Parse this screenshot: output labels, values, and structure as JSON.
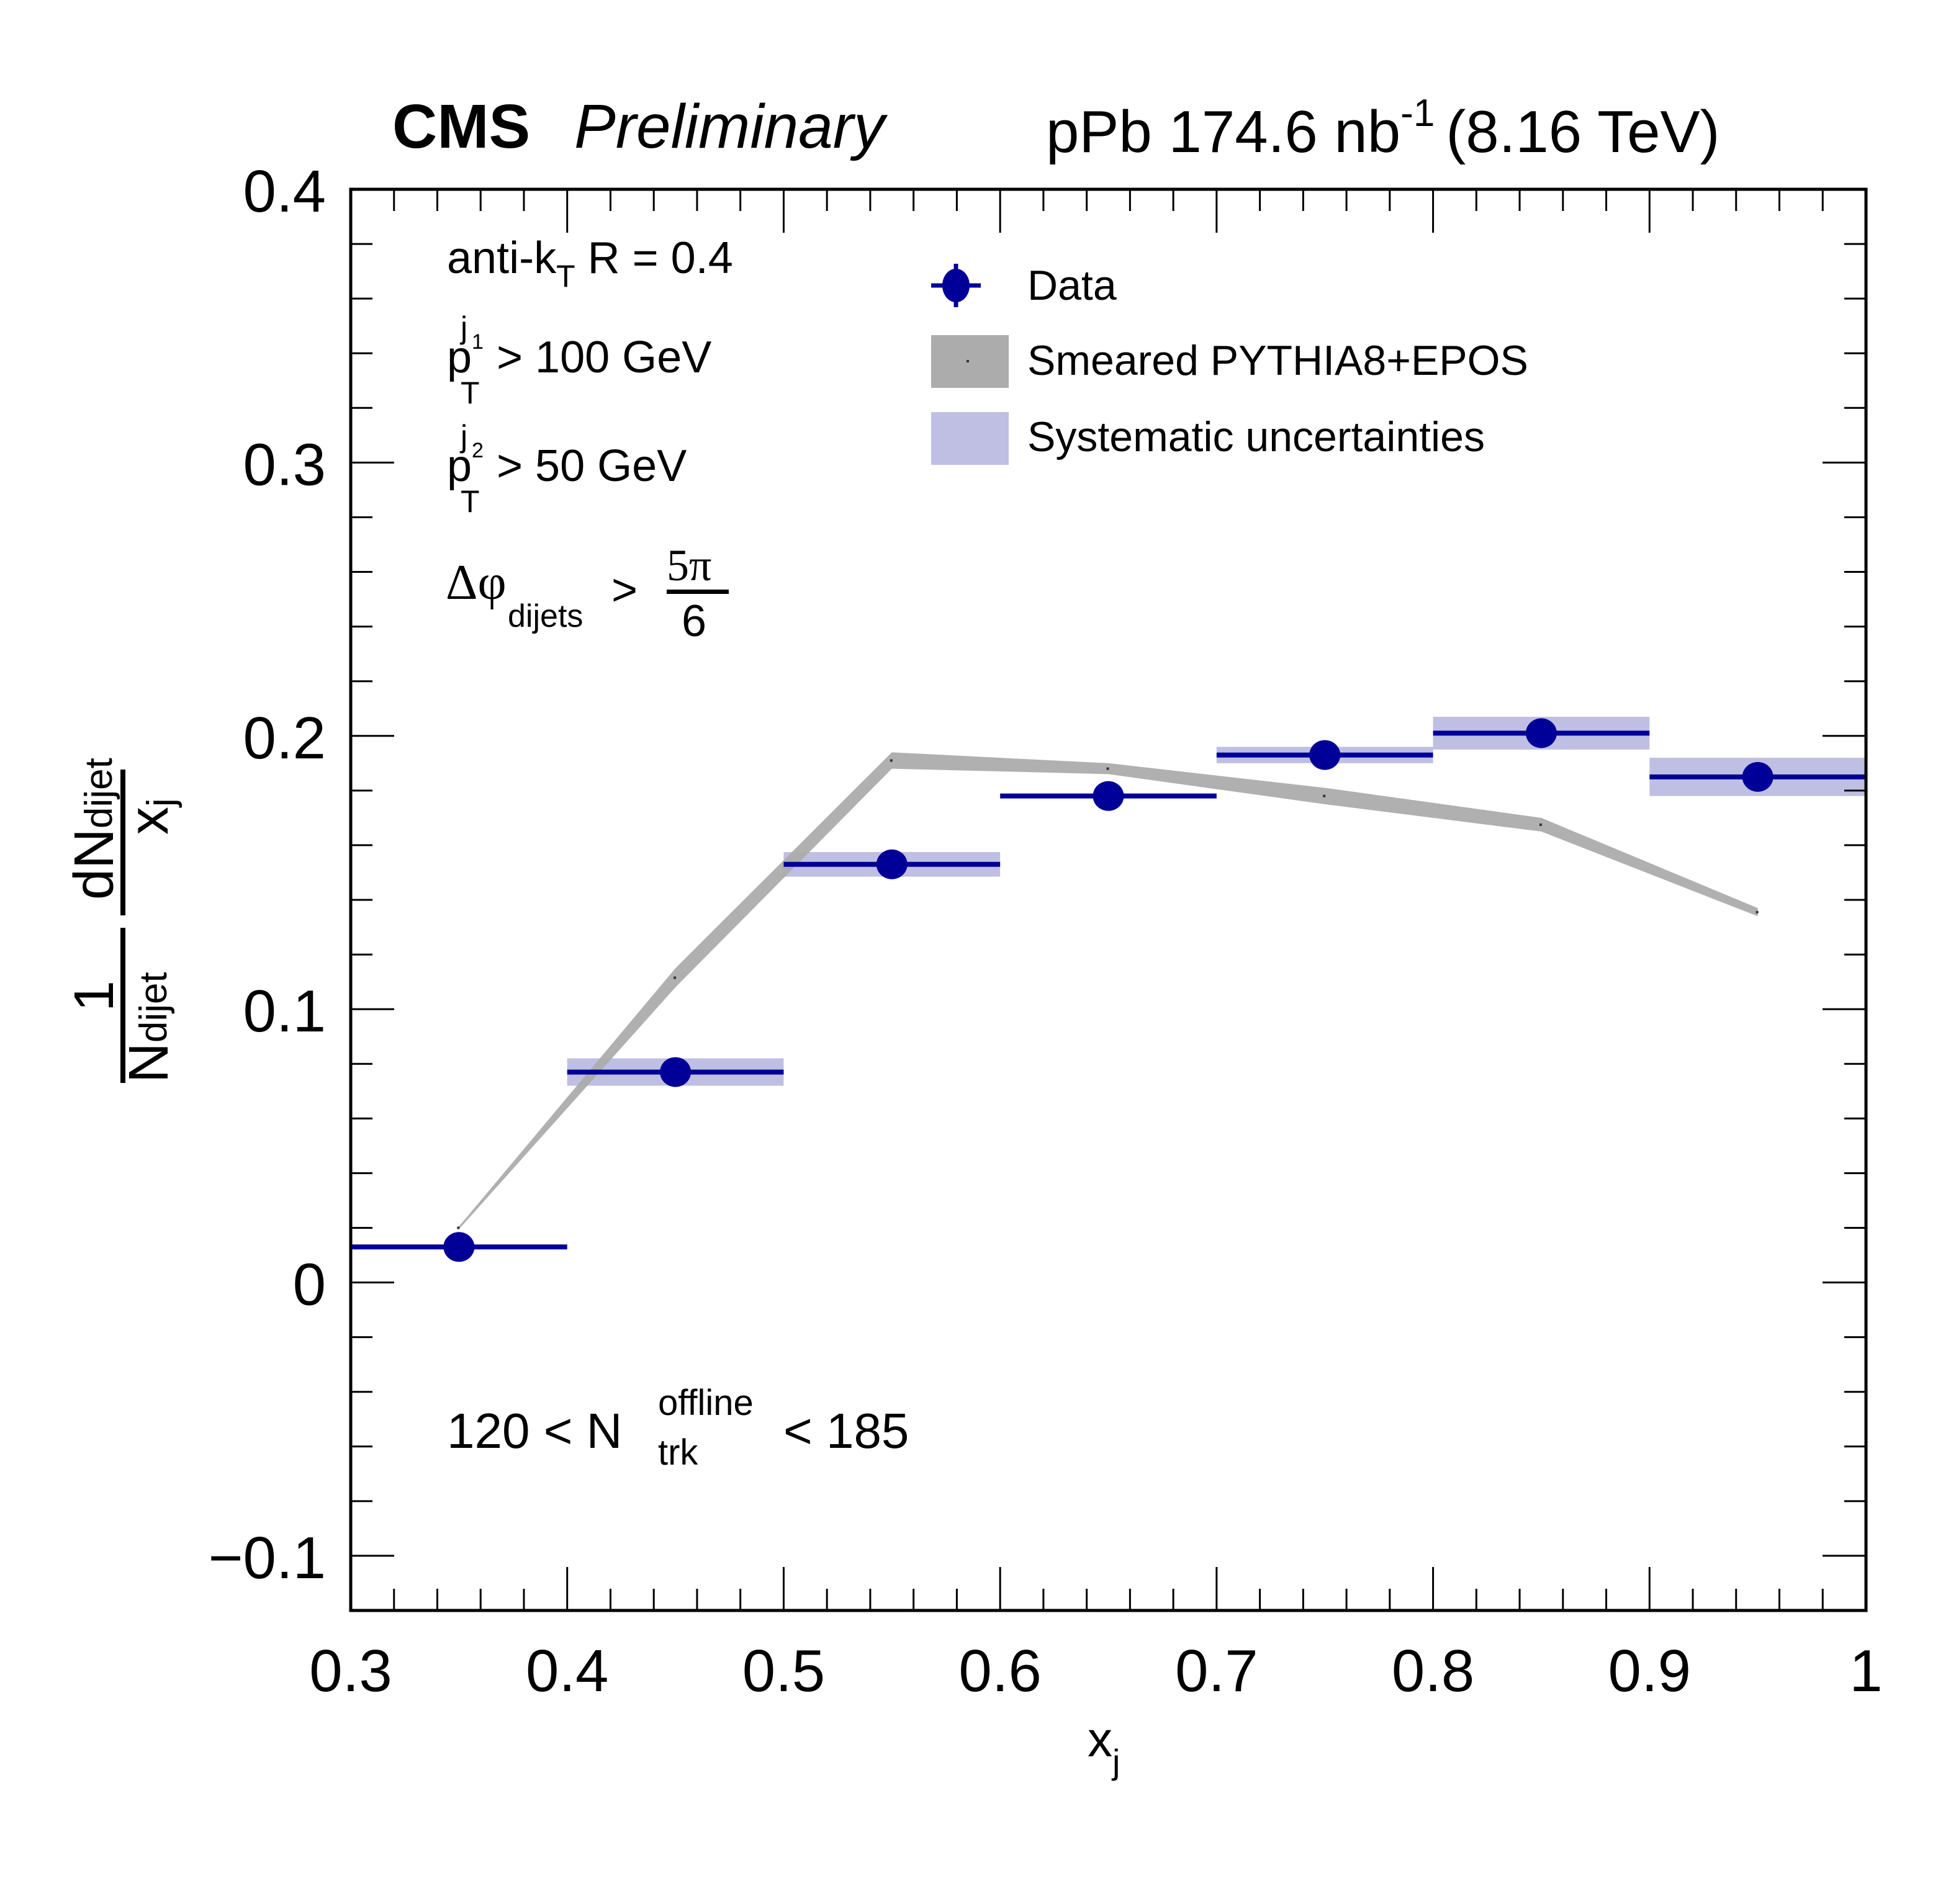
{
  "header": {
    "experiment": "CMS",
    "status": "Preliminary",
    "lumi_prefix": "pPb 174.6 nb",
    "lumi_exponent": "-1",
    "energy": "(8.16 TeV)"
  },
  "annotations": {
    "algo_prefix": "anti-k",
    "algo_sub": "T",
    "algo_suffix": " R = 0.4",
    "pt1_p": "p",
    "pt1_sub": "T",
    "pt1_sup": "j",
    "pt1_sup_sub": "1",
    "pt1_cut": " > 100 GeV",
    "pt2_p": "p",
    "pt2_sub": "T",
    "pt2_sup": "j",
    "pt2_sup_sub": "2",
    "pt2_cut": " > 50 GeV",
    "dphi_main": "Δφ",
    "dphi_sub": "dijets",
    "dphi_gt": ">",
    "dphi_num": "5π",
    "dphi_den": "6",
    "ntrk_low": "120 < N",
    "ntrk_sup": "offline",
    "ntrk_sub": "trk",
    "ntrk_high": "< 185"
  },
  "chart_data": {
    "type": "scatter",
    "title": "",
    "xlabel": "x_j",
    "xlabel_main": "x",
    "xlabel_sub": "j",
    "ylabel": "1/N_dijet dN_dijet/x_j",
    "ylabel_parts": {
      "one": "1",
      "n_main": "N",
      "n_sub": "dijet",
      "dn_main": "dN",
      "dn_sub": "dijet",
      "x_main": "x",
      "x_sub": "j"
    },
    "xlim": [
      0.3,
      1.0
    ],
    "ylim": [
      -0.12,
      0.4
    ],
    "x_ticks": [
      0.3,
      0.4,
      0.5,
      0.6,
      0.7,
      0.8,
      0.9,
      1.0
    ],
    "x_tick_labels": [
      "0.3",
      "0.4",
      "0.5",
      "0.6",
      "0.7",
      "0.8",
      "0.9",
      "1"
    ],
    "y_ticks": [
      -0.1,
      0.0,
      0.1,
      0.2,
      0.3,
      0.4
    ],
    "y_tick_labels": [
      "−0.1",
      "0",
      "0.1",
      "0.2",
      "0.3",
      "0.4"
    ],
    "grid": false,
    "legend_position": "top-center",
    "legend": [
      {
        "label": "Data",
        "kind": "marker"
      },
      {
        "label": "Smeared PYTHIA8+EPOS",
        "kind": "band-mc"
      },
      {
        "label": "Systematic uncertainties",
        "kind": "band-syst"
      }
    ],
    "colors": {
      "data": "#000099",
      "syst": "#bfbfe3",
      "mc": "#acacac",
      "axis": "#000000"
    },
    "bin_edges": [
      0.3,
      0.4,
      0.5,
      0.6,
      0.7,
      0.8,
      0.9,
      1.0
    ],
    "series": [
      {
        "name": "Data",
        "x": [
          0.35,
          0.45,
          0.55,
          0.65,
          0.75,
          0.85,
          0.95
        ],
        "y": [
          0.013,
          0.077,
          0.153,
          0.178,
          0.193,
          0.201,
          0.185
        ],
        "syst_err": [
          0.0,
          0.005,
          0.0045,
          0.0,
          0.003,
          0.006,
          0.007
        ]
      },
      {
        "name": "Smeared PYTHIA8+EPOS",
        "x": [
          0.35,
          0.45,
          0.55,
          0.65,
          0.75,
          0.85,
          0.95
        ],
        "y_low": [
          0.0195,
          0.108,
          0.188,
          0.186,
          0.175,
          0.165,
          0.134
        ],
        "y_high": [
          0.0205,
          0.115,
          0.194,
          0.19,
          0.181,
          0.17,
          0.137
        ]
      }
    ]
  }
}
